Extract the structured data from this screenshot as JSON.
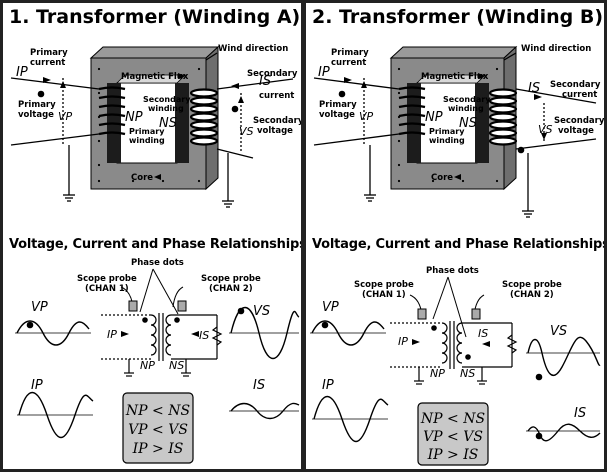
{
  "panel_a": {
    "title": "1. Transformer (Winding A)",
    "subtitle": "Voltage, Current and Phase Relationships",
    "labels": {
      "primary_current": [
        "Primary",
        "current"
      ],
      "secondary_current": [
        "Secondary",
        "current"
      ],
      "wind_direction": "Wind direction",
      "magnetic_flux": "Magnetic Flux",
      "primary_voltage": [
        "Primary",
        "voltage"
      ],
      "secondary_voltage": [
        "Secondary",
        "voltage"
      ],
      "secondary_winding": [
        "Secondary",
        "winding"
      ],
      "primary_winding": [
        "Primary",
        "winding"
      ],
      "core": "Core",
      "Ip": "IP",
      "Is": "IS",
      "Vp": "VP",
      "Vs": "VS",
      "Np": "NP",
      "Ns": "NS",
      "phase_dots": "Phase dots",
      "scope_probe_1": [
        "Scope probe",
        "(CHAN 1)"
      ],
      "scope_probe_2": [
        "Scope probe",
        "(CHAN 2)"
      ]
    },
    "relations": [
      "NP < NS",
      "VP < VS",
      "IP > IS"
    ]
  },
  "panel_b": {
    "title": "2. Transformer (Winding B)",
    "subtitle": "Voltage, Current and Phase Relationships",
    "labels": {
      "primary_current": [
        "Primary",
        "current"
      ],
      "secondary_current": [
        "Secondary",
        "current"
      ],
      "wind_direction": "Wind direction",
      "magnetic_flux": "Magnetic Flux",
      "primary_voltage": [
        "Primary",
        "voltage"
      ],
      "secondary_voltage": [
        "Secondary",
        "voltage"
      ],
      "secondary_winding": [
        "Secondary",
        "winding"
      ],
      "primary_winding": [
        "Primary",
        "winding"
      ],
      "core": "Core",
      "Ip": "IP",
      "Is": "IS",
      "Vp": "VP",
      "Vs": "VS",
      "Np": "NP",
      "Ns": "NS",
      "phase_dots": "Phase dots",
      "scope_probe_1": [
        "Scope probe",
        "(CHAN 1)"
      ],
      "scope_probe_2": [
        "Scope probe",
        "(CHAN 2)"
      ]
    },
    "relations": [
      "NP < NS",
      "VP < VS",
      "IP > IS"
    ]
  },
  "colors": {
    "core": "#8a8a8a",
    "core_dark": "#5a5a5a",
    "relations_box": "#c8c8c8"
  }
}
